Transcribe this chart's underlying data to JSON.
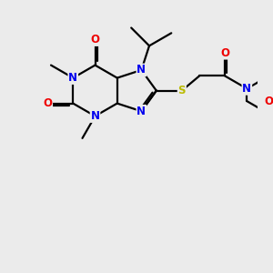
{
  "bg_color": "#ebebeb",
  "bond_color": "#000000",
  "atom_colors": {
    "N": "#0000ee",
    "O": "#ee0000",
    "S": "#bbbb00",
    "C": "#000000"
  }
}
